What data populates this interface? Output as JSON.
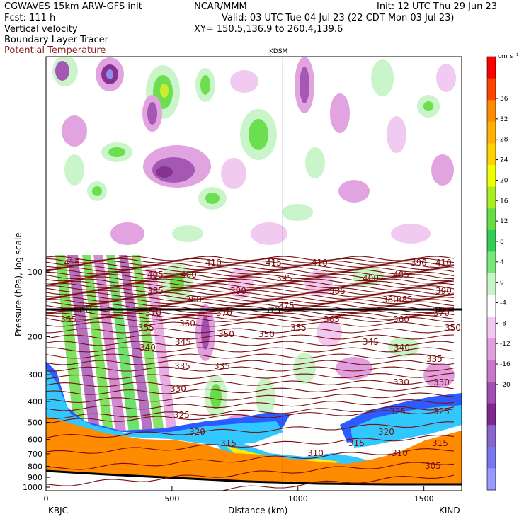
{
  "header": {
    "model": "CGWAVES 15km ARW-GFS init",
    "forecast": "Fcst:  111 h",
    "field1": "Vertical velocity",
    "field2": "Boundary Layer Tracer",
    "field3": "Potential Temperature",
    "org": "NCAR/MMM",
    "init": "Init: 12 UTC Thu 29 Jun 23",
    "valid": "Valid: 03 UTC Tue 04 Jul 23 (22 CDT Mon 03 Jul 23)",
    "xy": "XY= 150.5,136.9 to 260.4,139.6"
  },
  "chart_data": {
    "type": "contour-cross-section",
    "xlabel": "Distance (km)",
    "ylabel": "Pressure (hPa), log scale",
    "x_ticks": [
      "0",
      "500",
      "1000",
      "1500"
    ],
    "xlim": [
      0,
      1650
    ],
    "y_ticks": [
      "100",
      "200",
      "300",
      "400",
      "500",
      "600",
      "700",
      "800",
      "900",
      "1000"
    ],
    "y_scale": "log",
    "left_station": "KBJC",
    "right_station": "KIND",
    "mid_station": "KDSM",
    "mid_station_km": 940,
    "tropopause_label": "(TP)",
    "colorbar": {
      "unit": "cm s⁻¹",
      "ticks": [
        "36",
        "32",
        "28",
        "24",
        "20",
        "16",
        "12",
        "8",
        "4",
        "0",
        "-4",
        "-8",
        "-12",
        "-16",
        "-20"
      ],
      "colors": [
        "#ff0000",
        "#ff4400",
        "#ff8a00",
        "#ffb000",
        "#ffd000",
        "#eeff00",
        "#aaee22",
        "#66dd44",
        "#33cc55",
        "#77e877",
        "#c8f5c8",
        "#ffffff",
        "#f0c8f0",
        "#e0a0e0",
        "#c878c8",
        "#a050b0",
        "#80288c",
        "#8866cc",
        "#7777ee",
        "#9999ff"
      ]
    },
    "theta_labels": [
      "415",
      "410",
      "405",
      "400",
      "395",
      "390",
      "385",
      "380",
      "375",
      "370",
      "365",
      "360",
      "355",
      "350",
      "345",
      "340",
      "335",
      "330",
      "325",
      "320",
      "315",
      "310",
      "305"
    ],
    "colors": {
      "theta": "#7a1010",
      "terrain": "#ff8c00",
      "tracer_blue": "#2a5cff",
      "tracer_cyan": "#30c8ff",
      "tracer_yellow": "#ffee00",
      "up_green": "#55dd55",
      "down_purple": "#a050b0"
    }
  }
}
